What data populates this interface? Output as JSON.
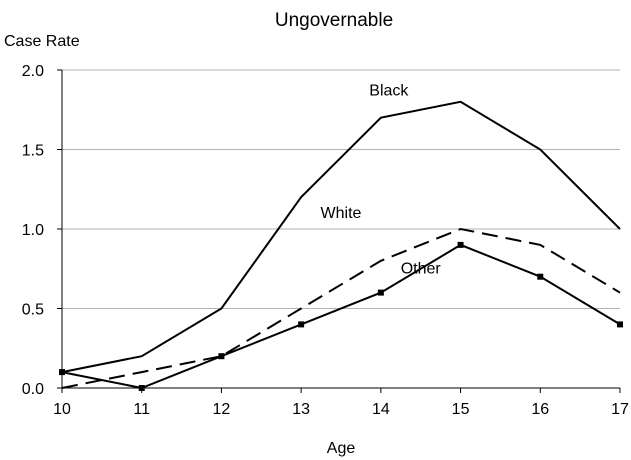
{
  "chart_data": {
    "type": "line",
    "title": "Ungovernable",
    "ylabel": "Case Rate",
    "xlabel": "Age",
    "x": [
      10,
      11,
      12,
      13,
      14,
      15,
      16,
      17
    ],
    "xticks": [
      "10",
      "11",
      "12",
      "13",
      "14",
      "15",
      "16",
      "17"
    ],
    "yticks": [
      "0.0",
      "0.5",
      "1.0",
      "1.5",
      "2.0"
    ],
    "ylim": [
      0,
      2
    ],
    "xlim": [
      10,
      17
    ],
    "grid": "horizontal",
    "legend": "none",
    "series": [
      {
        "name": "Black",
        "values": [
          0.1,
          0.2,
          0.5,
          1.2,
          1.7,
          1.8,
          1.5,
          1.0
        ],
        "style": "solid",
        "markers": false,
        "color": "#000000"
      },
      {
        "name": "White",
        "values": [
          0.0,
          0.1,
          0.2,
          0.5,
          0.8,
          1.0,
          0.9,
          0.6
        ],
        "style": "dashed",
        "markers": false,
        "color": "#000000"
      },
      {
        "name": "Other",
        "values": [
          0.1,
          0.0,
          0.2,
          0.4,
          0.6,
          0.9,
          0.7,
          0.4
        ],
        "style": "solid",
        "markers": true,
        "color": "#000000"
      }
    ]
  }
}
